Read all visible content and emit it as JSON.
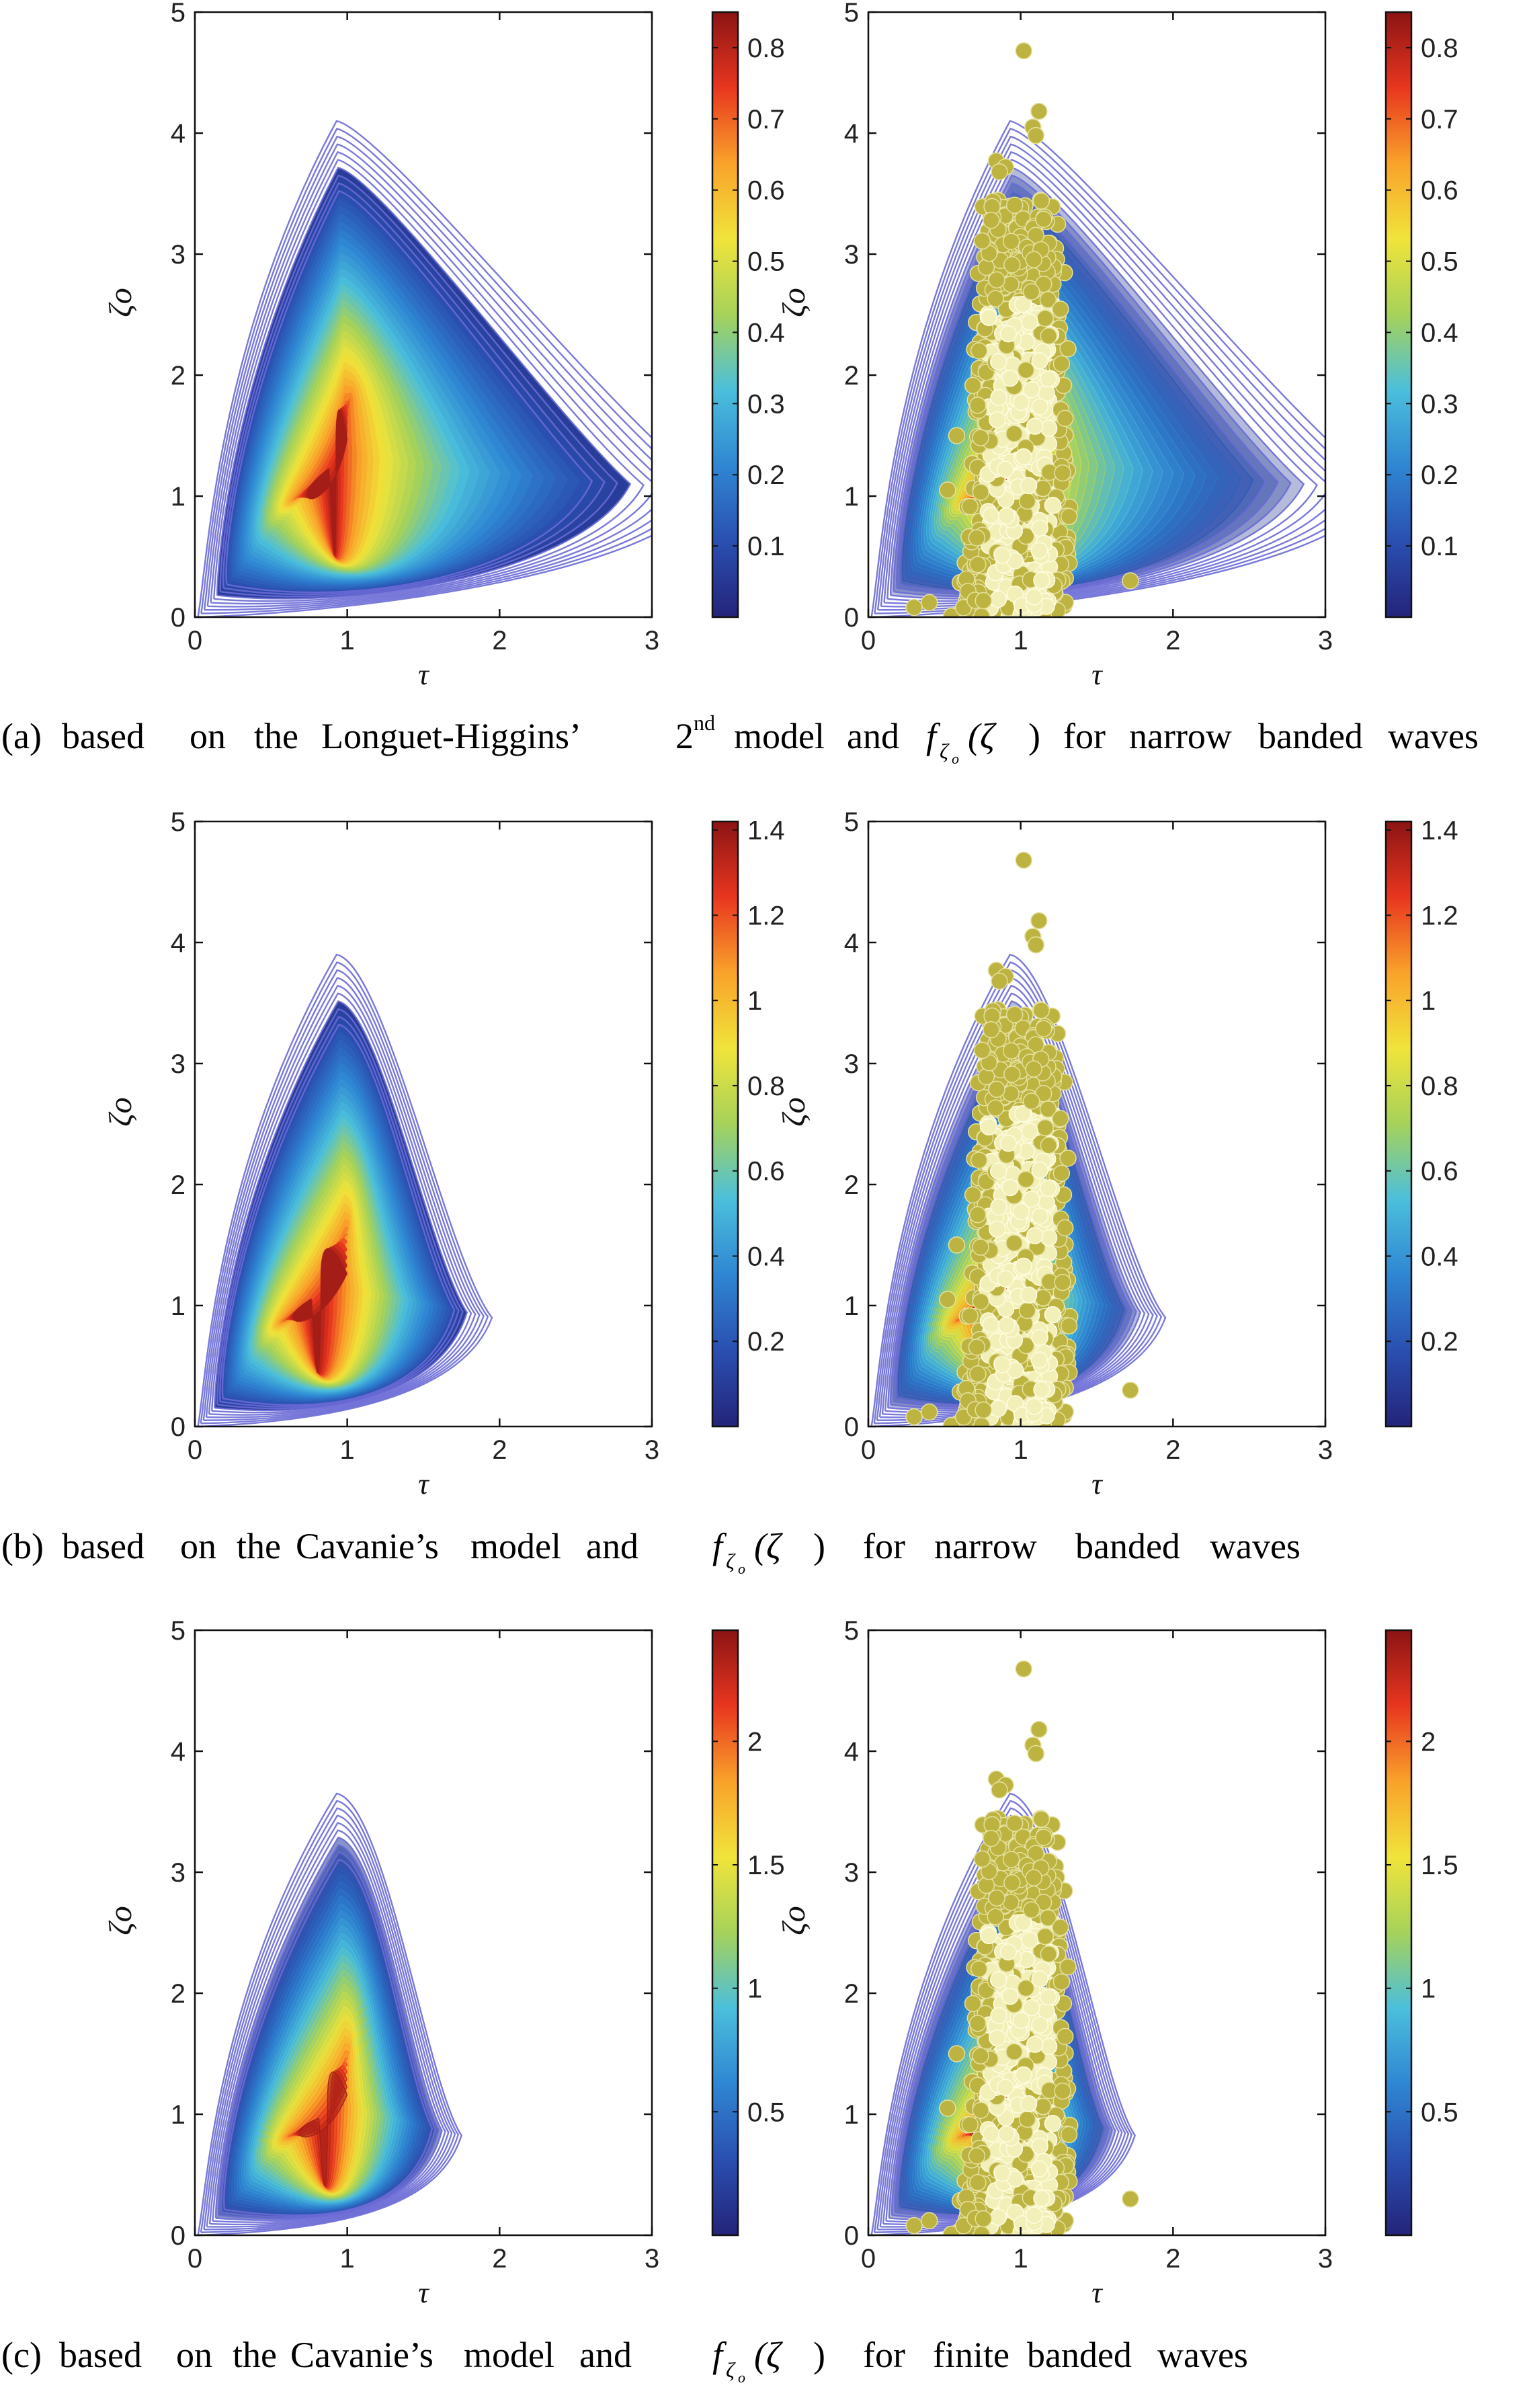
{
  "colormap": [
    "#24247a",
    "#2a4fb0",
    "#2f86d2",
    "#4bbfdc",
    "#a6d25a",
    "#f0e43a",
    "#f9a22a",
    "#e8361f",
    "#8c1414"
  ],
  "colors": {
    "contour": "#6a6ad6",
    "scatter_fill": "#bdb340",
    "scatter_dense": "#f2f0b8",
    "axes": "#111111"
  },
  "captions": [
    {
      "prefix": "(a)",
      "words": [
        "based",
        "on",
        "the",
        "Longuet-Higgins’",
        "2",
        "model",
        "and",
        "f",
        "(ζ",
        ")",
        "for",
        "narrow",
        "banded",
        "waves"
      ],
      "superscript": "nd",
      "sub": "ζ",
      "subsub": "o"
    },
    {
      "prefix": "(b)",
      "words": [
        "based",
        "on",
        "the",
        "Cavanie’s",
        "model",
        "and",
        "f",
        "(ζ",
        ")",
        "for",
        "narrow",
        "banded",
        "waves"
      ],
      "sub": "ζ",
      "subsub": "o"
    },
    {
      "prefix": "(c)",
      "words": [
        "based",
        "on",
        "the",
        "Cavanie’s",
        "model",
        "and",
        "f",
        "(ζ",
        ")",
        "for",
        "finite",
        "banded",
        "waves"
      ],
      "sub": "ζ",
      "subsub": "o"
    }
  ],
  "chart_data": [
    {
      "id": "a-left",
      "type": "contour",
      "model": "Longuet-Higgins 2nd",
      "xlabel": "τ",
      "ylabel": "ζo",
      "xlim": [
        0,
        3
      ],
      "ylim": [
        0,
        5
      ],
      "xticks": [
        "0",
        "1",
        "2",
        "3"
      ],
      "yticks": [
        "0",
        "1",
        "2",
        "3",
        "4",
        "5"
      ],
      "colorbar": {
        "range": [
          0,
          0.85
        ],
        "ticks": [
          0.1,
          0.2,
          0.3,
          0.4,
          0.5,
          0.6,
          0.7,
          0.8
        ],
        "labels": [
          "0.1",
          "0.2",
          "0.3",
          "0.4",
          "0.5",
          "0.6",
          "0.7",
          "0.8"
        ]
      },
      "peak": {
        "tau": 0.92,
        "zeta": 1.4,
        "value": 0.85
      },
      "outer_contour_apex": {
        "tau": 1.0,
        "zeta": 4.1
      },
      "scatter": false,
      "fill_opacity": 1.0
    },
    {
      "id": "a-right",
      "type": "contour+scatter",
      "model": "Longuet-Higgins 2nd",
      "xlabel": "τ",
      "ylabel": "ζo",
      "xlim": [
        0,
        3
      ],
      "ylim": [
        0,
        5
      ],
      "xticks": [
        "0",
        "1",
        "2",
        "3"
      ],
      "yticks": [
        "0",
        "1",
        "2",
        "3",
        "4",
        "5"
      ],
      "colorbar": {
        "range": [
          0,
          0.85
        ],
        "ticks": [
          0.1,
          0.2,
          0.3,
          0.4,
          0.5,
          0.6,
          0.7,
          0.8
        ],
        "labels": [
          "0.1",
          "0.2",
          "0.3",
          "0.4",
          "0.5",
          "0.6",
          "0.7",
          "0.8"
        ]
      },
      "peak": {
        "tau": 0.92,
        "zeta": 1.4,
        "value": 0.85
      },
      "outer_contour_apex": {
        "tau": 1.0,
        "zeta": 4.1
      },
      "scatter": true,
      "fill_opacity": 0.35
    },
    {
      "id": "b-left",
      "type": "contour",
      "model": "Cavanie",
      "xlabel": "τ",
      "ylabel": "ζo",
      "xlim": [
        0,
        3
      ],
      "ylim": [
        0,
        5
      ],
      "xticks": [
        "0",
        "1",
        "2",
        "3"
      ],
      "yticks": [
        "0",
        "1",
        "2",
        "3",
        "4",
        "5"
      ],
      "colorbar": {
        "range": [
          0,
          1.42
        ],
        "ticks": [
          0.2,
          0.4,
          0.6,
          0.8,
          1.0,
          1.2,
          1.4
        ],
        "labels": [
          "0.2",
          "0.4",
          "0.6",
          "0.8",
          "1",
          "1.2",
          "1.4"
        ]
      },
      "peak": {
        "tau": 0.8,
        "zeta": 1.2,
        "value": 1.42
      },
      "outer_contour_apex": {
        "tau": 1.0,
        "zeta": 3.9
      },
      "scatter": false,
      "fill_opacity": 1.0
    },
    {
      "id": "b-right",
      "type": "contour+scatter",
      "model": "Cavanie",
      "xlabel": "τ",
      "ylabel": "ζo",
      "xlim": [
        0,
        3
      ],
      "ylim": [
        0,
        5
      ],
      "xticks": [
        "0",
        "1",
        "2",
        "3"
      ],
      "yticks": [
        "0",
        "1",
        "2",
        "3",
        "4",
        "5"
      ],
      "colorbar": {
        "range": [
          0,
          1.42
        ],
        "ticks": [
          0.2,
          0.4,
          0.6,
          0.8,
          1.0,
          1.2,
          1.4
        ],
        "labels": [
          "0.2",
          "0.4",
          "0.6",
          "0.8",
          "1",
          "1.2",
          "1.4"
        ]
      },
      "peak": {
        "tau": 0.8,
        "zeta": 1.2,
        "value": 1.42
      },
      "outer_contour_apex": {
        "tau": 1.0,
        "zeta": 3.9
      },
      "scatter": true,
      "fill_opacity": 0.35
    },
    {
      "id": "c-left",
      "type": "contour",
      "model": "Cavanie finite band",
      "xlabel": "τ",
      "ylabel": "ζo",
      "xlim": [
        0,
        3
      ],
      "ylim": [
        0,
        5
      ],
      "xticks": [
        "0",
        "1",
        "2",
        "3"
      ],
      "yticks": [
        "0",
        "1",
        "2",
        "3",
        "4",
        "5"
      ],
      "colorbar": {
        "range": [
          0,
          2.45
        ],
        "ticks": [
          0.5,
          1.0,
          1.5,
          2.0
        ],
        "labels": [
          "0.5",
          "1",
          "1.5",
          "2"
        ]
      },
      "peak": {
        "tau": 0.85,
        "zeta": 1.1,
        "value": 2.45
      },
      "outer_contour_apex": {
        "tau": 1.0,
        "zeta": 3.65
      },
      "scatter": false,
      "fill_opacity": 0.55
    },
    {
      "id": "c-right",
      "type": "contour+scatter",
      "model": "Cavanie finite band",
      "xlabel": "τ",
      "ylabel": "ζo",
      "xlim": [
        0,
        3
      ],
      "ylim": [
        0,
        5
      ],
      "xticks": [
        "0",
        "1",
        "2",
        "3"
      ],
      "yticks": [
        "0",
        "1",
        "2",
        "3",
        "4",
        "5"
      ],
      "colorbar": {
        "range": [
          0,
          2.45
        ],
        "ticks": [
          0.5,
          1.0,
          1.5,
          2.0
        ],
        "labels": [
          "0.5",
          "1",
          "1.5",
          "2"
        ]
      },
      "peak": {
        "tau": 0.85,
        "zeta": 1.1,
        "value": 2.45
      },
      "outer_contour_apex": {
        "tau": 1.0,
        "zeta": 3.65
      },
      "scatter": true,
      "fill_opacity": 0.35
    }
  ],
  "scatter_outliers": [
    {
      "tau": 1.02,
      "zeta": 4.68
    },
    {
      "tau": 1.12,
      "zeta": 4.18
    },
    {
      "tau": 1.08,
      "zeta": 4.05
    },
    {
      "tau": 1.1,
      "zeta": 3.98
    },
    {
      "tau": 0.84,
      "zeta": 3.77
    },
    {
      "tau": 0.9,
      "zeta": 3.72
    },
    {
      "tau": 0.86,
      "zeta": 3.68
    },
    {
      "tau": 1.72,
      "zeta": 0.3
    },
    {
      "tau": 0.58,
      "zeta": 1.5
    },
    {
      "tau": 0.52,
      "zeta": 1.05
    },
    {
      "tau": 0.3,
      "zeta": 0.08
    },
    {
      "tau": 0.4,
      "zeta": 0.12
    }
  ]
}
